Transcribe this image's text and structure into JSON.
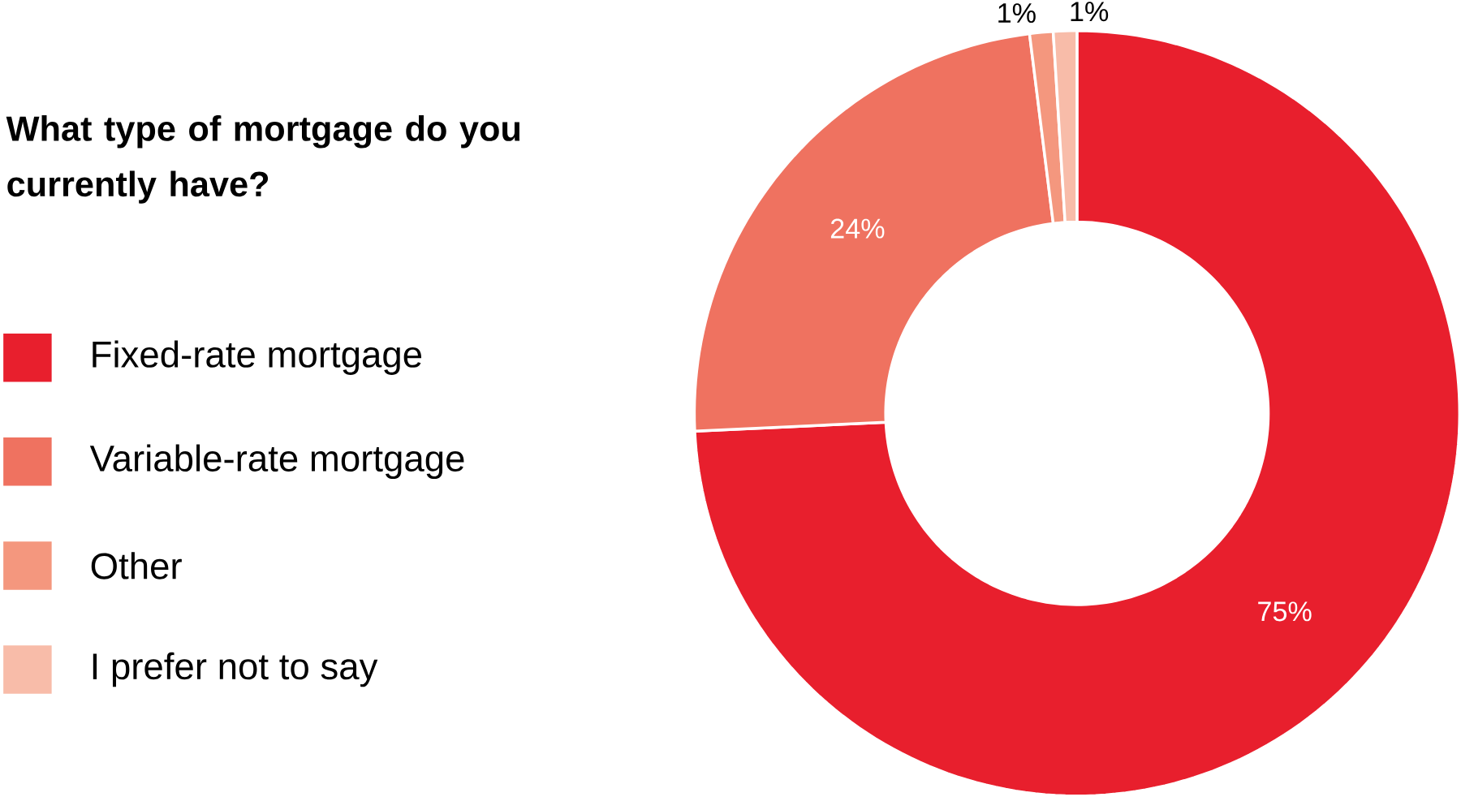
{
  "chart_data": {
    "type": "donut",
    "title": "What type of mortgage do you currently have?",
    "categories": [
      "Fixed-rate mortgage",
      "Variable-rate mortgage",
      "Other",
      "I prefer not to say"
    ],
    "values": [
      75,
      24,
      1,
      1
    ],
    "colors": [
      "#e81f2d",
      "#ef7260",
      "#f4977e",
      "#f8bca9"
    ],
    "value_labels": [
      "75%",
      "24%",
      "1%",
      "1%"
    ],
    "legend": "left"
  }
}
